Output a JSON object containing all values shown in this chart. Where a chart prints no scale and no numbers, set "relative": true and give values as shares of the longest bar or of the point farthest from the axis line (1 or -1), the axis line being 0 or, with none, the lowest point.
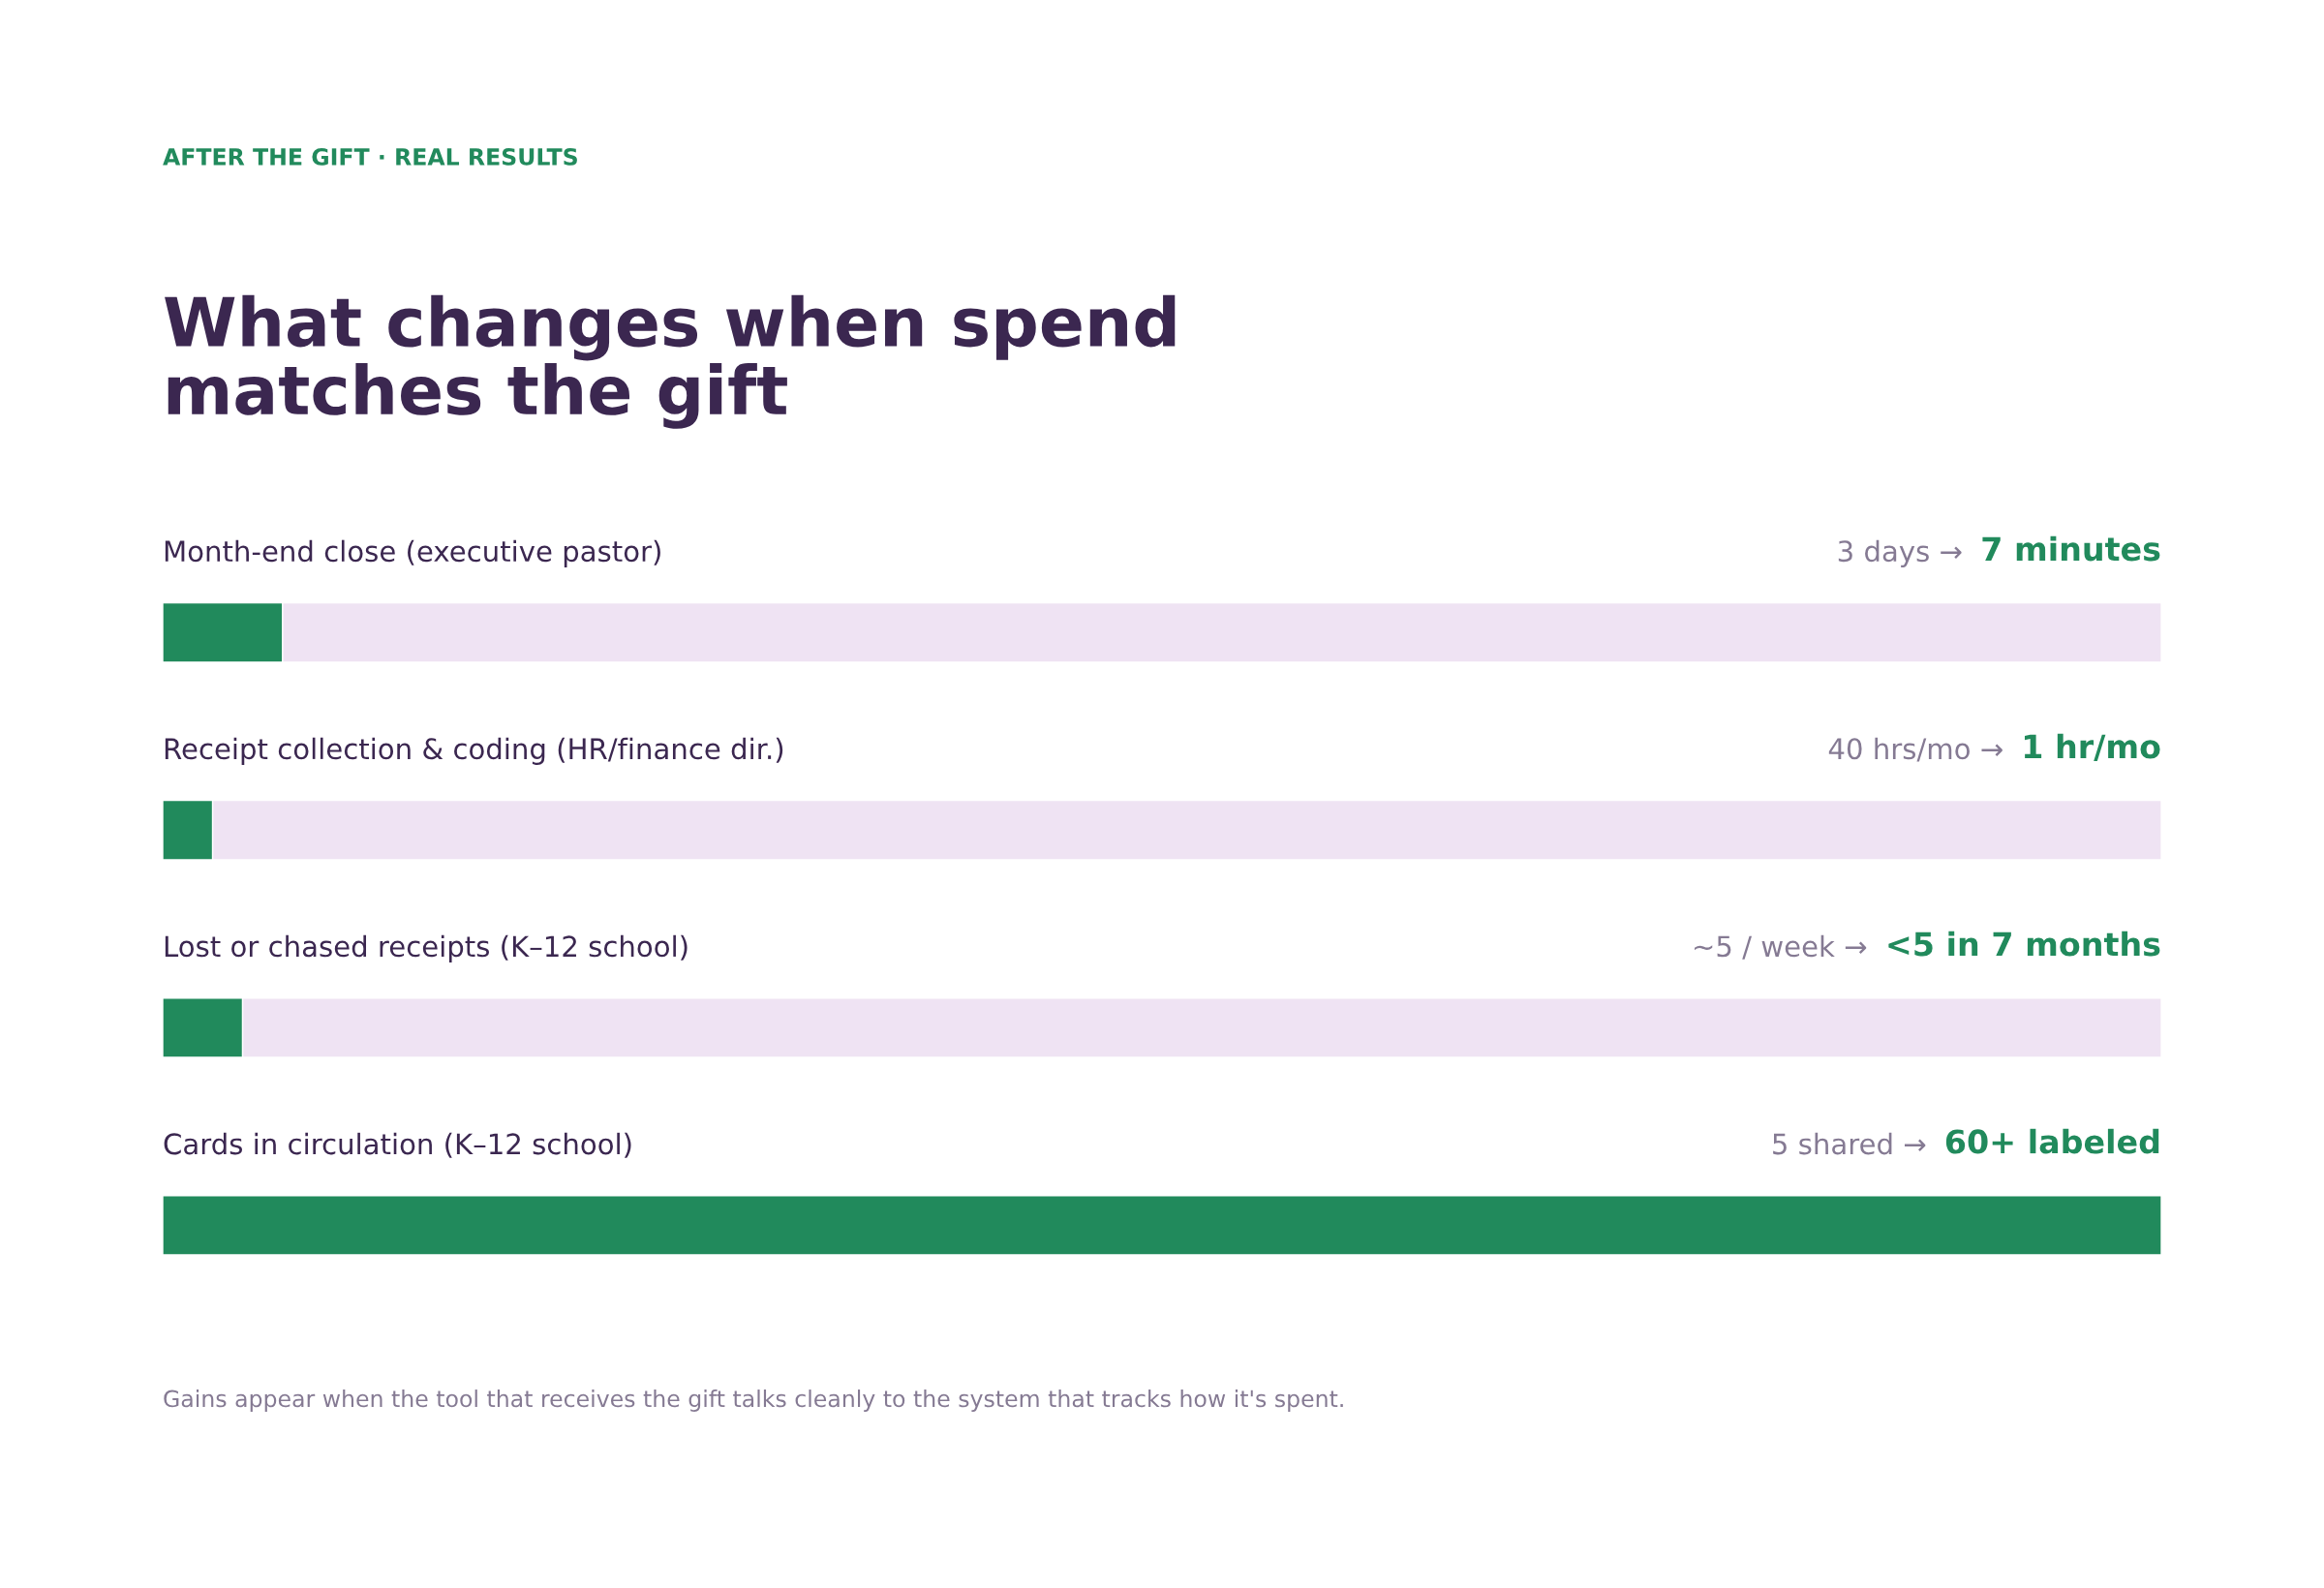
{
  "chart_data": {
    "type": "bar",
    "orientation": "horizontal",
    "stacked": true,
    "relative": true,
    "subtitle": "AFTER THE GIFT · REAL RESULTS",
    "title": "What changes when spend\nmatches the gift",
    "categories": [
      "Month-end close (executive pastor)",
      "Receipt collection & coding (HR/finance dir.)",
      "Lost or chased receipts (K–12 school)",
      "Cards in circulation (K–12 school)"
    ],
    "series": [
      {
        "color": "#218a5c",
        "values": [
          0.06,
          0.025,
          0.04,
          1
        ]
      },
      {
        "color": "#efe3f3",
        "values": [
          0.94,
          0.975,
          0.96,
          null
        ]
      }
    ],
    "annotations": [
      "3 days →",
      "7 minutes",
      "40 hrs/mo →",
      "1 hr/mo",
      "~5 / week →",
      "<5 in 7 months",
      "5 shared →",
      "60+ labeled",
      "Gains appear when the tool that receives the gift talks cleanly to the system that tracks how it's spent."
    ],
    "legend": false
  }
}
